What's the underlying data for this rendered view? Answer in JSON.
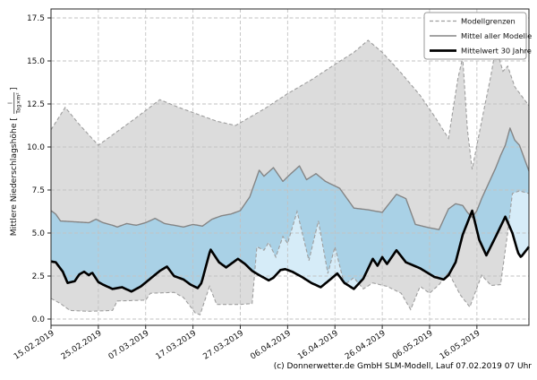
{
  "caption": "(c) Donnerwetter.de GmbH SLM-Modell, Lauf 07.02.2019 07 Uhr",
  "chart_data": {
    "type": "line",
    "title": "",
    "ylabel_prefix": "Mittlere Niederschlagshöhe [",
    "ylabel_fraction_numerator": "l",
    "ylabel_fraction_denominator": "Tag×m²",
    "ylabel_suffix": "]",
    "x_tick_labels": [
      "15.02.2019",
      "25.02.2019",
      "07.03.2019",
      "17.03.2019",
      "27.03.2019",
      "06.04.2019",
      "16.04.2019",
      "26.04.2019",
      "06.05.2019",
      "16.05.2019"
    ],
    "x_tick_days": [
      0,
      10,
      20,
      30,
      40,
      50,
      60,
      70,
      80,
      90
    ],
    "x_domain_days": [
      0,
      101
    ],
    "y_tick_labels": [
      "0.0",
      "2.5",
      "5.0",
      "7.5",
      "10.0",
      "12.5",
      "15.0",
      "17.5"
    ],
    "y_tick_values": [
      0,
      2.5,
      5,
      7.5,
      10,
      12.5,
      15,
      17.5
    ],
    "y_domain": [
      -0.4,
      18.0
    ],
    "grid": true,
    "legend_position": "top-right",
    "legend": [
      {
        "label": "Modellgrenzen",
        "style": "dashed-gray"
      },
      {
        "label": "Mittel aller Modelle",
        "style": "solid-gray"
      },
      {
        "label": "Mittelwert 30 Jahre",
        "style": "solid-black"
      }
    ],
    "series": [
      {
        "name": "model_max",
        "role": "upper model boundary (Modellgrenzen)",
        "points": [
          [
            0,
            11.0
          ],
          [
            3,
            12.3
          ],
          [
            6,
            11.3
          ],
          [
            10,
            10.1
          ],
          [
            14,
            10.9
          ],
          [
            18,
            11.7
          ],
          [
            23,
            12.75
          ],
          [
            27,
            12.3
          ],
          [
            31,
            11.9
          ],
          [
            35,
            11.5
          ],
          [
            39,
            11.25
          ],
          [
            45,
            12.2
          ],
          [
            50,
            13.1
          ],
          [
            55,
            13.9
          ],
          [
            60,
            14.8
          ],
          [
            64,
            15.5
          ],
          [
            67,
            16.2
          ],
          [
            70,
            15.5
          ],
          [
            74,
            14.3
          ],
          [
            78,
            13.0
          ],
          [
            81,
            11.8
          ],
          [
            84,
            10.5
          ],
          [
            86,
            14.0
          ],
          [
            87,
            15.2
          ],
          [
            88,
            11.0
          ],
          [
            89,
            8.7
          ],
          [
            91,
            11.5
          ],
          [
            93,
            14.2
          ],
          [
            94,
            15.8
          ],
          [
            95.5,
            14.4
          ],
          [
            96.5,
            14.7
          ],
          [
            98,
            13.5
          ],
          [
            101,
            12.4
          ]
        ]
      },
      {
        "name": "model_min",
        "role": "lower model boundary (Modellgrenzen)",
        "points": [
          [
            0,
            1.2
          ],
          [
            2,
            0.9
          ],
          [
            4,
            0.5
          ],
          [
            8,
            0.45
          ],
          [
            13,
            0.5
          ],
          [
            14,
            1.05
          ],
          [
            20,
            1.1
          ],
          [
            21,
            1.5
          ],
          [
            26,
            1.55
          ],
          [
            28,
            1.25
          ],
          [
            30.5,
            0.35
          ],
          [
            31.5,
            0.25
          ],
          [
            33.5,
            1.9
          ],
          [
            35,
            0.85
          ],
          [
            40,
            0.85
          ],
          [
            42.5,
            0.9
          ],
          [
            43.5,
            4.2
          ],
          [
            45,
            4.0
          ],
          [
            46,
            4.45
          ],
          [
            47.5,
            3.6
          ],
          [
            49,
            4.8
          ],
          [
            50,
            4.4
          ],
          [
            52,
            6.25
          ],
          [
            54.5,
            3.4
          ],
          [
            56.5,
            5.7
          ],
          [
            58.5,
            2.65
          ],
          [
            60,
            4.2
          ],
          [
            62,
            2.0
          ],
          [
            64,
            2.4
          ],
          [
            66,
            1.75
          ],
          [
            68,
            2.1
          ],
          [
            71,
            1.9
          ],
          [
            74,
            1.5
          ],
          [
            76,
            0.55
          ],
          [
            78,
            1.9
          ],
          [
            80,
            1.5
          ],
          [
            82,
            2.0
          ],
          [
            84,
            2.7
          ],
          [
            86.5,
            1.4
          ],
          [
            88.5,
            0.7
          ],
          [
            91,
            2.55
          ],
          [
            93,
            1.95
          ],
          [
            95,
            2.0
          ],
          [
            96.5,
            5.0
          ],
          [
            97.5,
            7.3
          ],
          [
            99,
            7.45
          ],
          [
            101,
            7.3
          ]
        ]
      },
      {
        "name": "model_mean",
        "role": "Mittel aller Modelle",
        "points": [
          [
            0,
            6.3
          ],
          [
            1,
            6.1
          ],
          [
            2,
            5.7
          ],
          [
            5,
            5.65
          ],
          [
            8,
            5.6
          ],
          [
            9.5,
            5.8
          ],
          [
            11,
            5.6
          ],
          [
            13,
            5.45
          ],
          [
            14,
            5.35
          ],
          [
            16,
            5.55
          ],
          [
            18,
            5.45
          ],
          [
            20,
            5.6
          ],
          [
            22,
            5.85
          ],
          [
            24,
            5.55
          ],
          [
            26,
            5.45
          ],
          [
            28,
            5.35
          ],
          [
            30,
            5.5
          ],
          [
            32,
            5.4
          ],
          [
            34,
            5.8
          ],
          [
            36,
            6.0
          ],
          [
            38,
            6.1
          ],
          [
            40,
            6.3
          ],
          [
            42,
            7.1
          ],
          [
            44,
            8.65
          ],
          [
            45,
            8.3
          ],
          [
            47,
            8.8
          ],
          [
            49,
            8.0
          ],
          [
            50.5,
            8.4
          ],
          [
            52.5,
            8.9
          ],
          [
            54,
            8.1
          ],
          [
            56,
            8.45
          ],
          [
            58,
            8.0
          ],
          [
            61,
            7.6
          ],
          [
            64,
            6.45
          ],
          [
            67,
            6.35
          ],
          [
            70,
            6.2
          ],
          [
            73,
            7.25
          ],
          [
            75,
            7.0
          ],
          [
            77,
            5.5
          ],
          [
            80,
            5.3
          ],
          [
            82,
            5.2
          ],
          [
            84,
            6.4
          ],
          [
            85.5,
            6.7
          ],
          [
            87,
            6.6
          ],
          [
            88,
            6.2
          ],
          [
            89,
            5.9
          ],
          [
            90,
            6.3
          ],
          [
            91,
            7.0
          ],
          [
            92,
            7.6
          ],
          [
            93,
            8.2
          ],
          [
            94,
            8.8
          ],
          [
            95,
            9.5
          ],
          [
            96,
            10.1
          ],
          [
            97,
            11.1
          ],
          [
            98,
            10.4
          ],
          [
            99,
            10.1
          ],
          [
            101,
            8.6
          ]
        ]
      },
      {
        "name": "mean_30y",
        "role": "Mittelwert 30 Jahre",
        "points": [
          [
            0,
            3.35
          ],
          [
            1,
            3.3
          ],
          [
            2.5,
            2.75
          ],
          [
            3.5,
            2.1
          ],
          [
            5,
            2.2
          ],
          [
            6,
            2.6
          ],
          [
            7,
            2.75
          ],
          [
            8,
            2.55
          ],
          [
            8.7,
            2.7
          ],
          [
            10,
            2.15
          ],
          [
            11,
            2.0
          ],
          [
            13,
            1.75
          ],
          [
            15,
            1.85
          ],
          [
            17,
            1.6
          ],
          [
            19,
            1.9
          ],
          [
            21,
            2.35
          ],
          [
            23,
            2.8
          ],
          [
            24.5,
            3.05
          ],
          [
            26,
            2.5
          ],
          [
            28,
            2.3
          ],
          [
            29.5,
            2.0
          ],
          [
            31,
            1.8
          ],
          [
            31.8,
            2.1
          ],
          [
            33.7,
            4.05
          ],
          [
            35.5,
            3.3
          ],
          [
            37,
            3.0
          ],
          [
            39.5,
            3.5
          ],
          [
            41,
            3.2
          ],
          [
            42.5,
            2.8
          ],
          [
            44,
            2.55
          ],
          [
            46,
            2.25
          ],
          [
            47,
            2.4
          ],
          [
            48.5,
            2.85
          ],
          [
            49.5,
            2.9
          ],
          [
            51,
            2.75
          ],
          [
            53,
            2.45
          ],
          [
            55,
            2.1
          ],
          [
            57,
            1.85
          ],
          [
            59,
            2.3
          ],
          [
            60.5,
            2.65
          ],
          [
            62,
            2.1
          ],
          [
            64,
            1.75
          ],
          [
            66,
            2.35
          ],
          [
            68,
            3.5
          ],
          [
            69,
            3.1
          ],
          [
            70,
            3.6
          ],
          [
            71,
            3.2
          ],
          [
            73,
            4.0
          ],
          [
            75,
            3.3
          ],
          [
            78,
            2.95
          ],
          [
            81,
            2.45
          ],
          [
            83,
            2.3
          ],
          [
            84,
            2.55
          ],
          [
            85.5,
            3.3
          ],
          [
            87,
            4.9
          ],
          [
            89,
            6.3
          ],
          [
            90.5,
            4.6
          ],
          [
            92,
            3.7
          ],
          [
            94,
            4.8
          ],
          [
            96,
            5.95
          ],
          [
            97.5,
            5.0
          ],
          [
            98.7,
            3.85
          ],
          [
            99.3,
            3.6
          ],
          [
            101,
            4.2
          ]
        ]
      }
    ],
    "colors": {
      "band_fill": "#dcdcdc",
      "band_edge": "#9e9e9e",
      "blue_inside_band": "#a9d1e6",
      "blue_outside_band": "#d6ecf8",
      "pink_drier": "#eec6ba",
      "model_mean_line": "#858585",
      "mean_30y_line": "#000000",
      "grid": "#c2c2c2",
      "spine": "#262626"
    }
  }
}
